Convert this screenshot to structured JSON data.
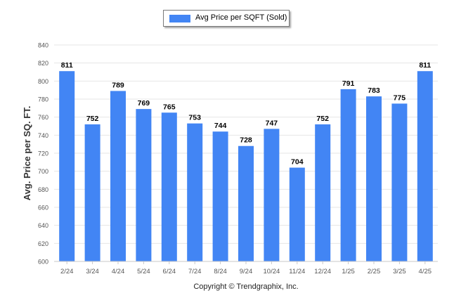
{
  "legend": {
    "label": "Avg Price per SQFT (Sold)"
  },
  "copyright": "Copyright © Trendgraphix, Inc.",
  "colors": {
    "bar": "#4285f4",
    "grid": "#e6e6e6",
    "axis": "#555555"
  },
  "chart_data": {
    "type": "bar",
    "title": "",
    "xlabel": "",
    "ylabel": "Avg. Price per SQ. FT.",
    "ylim": [
      600,
      840
    ],
    "yticks": [
      600,
      620,
      640,
      660,
      680,
      700,
      720,
      740,
      760,
      780,
      800,
      820,
      840
    ],
    "grid": true,
    "legend_position": "top-center",
    "categories": [
      "2/24",
      "3/24",
      "4/24",
      "5/24",
      "6/24",
      "7/24",
      "8/24",
      "9/24",
      "10/24",
      "11/24",
      "12/24",
      "1/25",
      "2/25",
      "3/25",
      "4/25"
    ],
    "series": [
      {
        "name": "Avg Price per SQFT (Sold)",
        "values": [
          811,
          752,
          789,
          769,
          765,
          753,
          744,
          728,
          747,
          704,
          752,
          791,
          783,
          775,
          811
        ]
      }
    ]
  }
}
